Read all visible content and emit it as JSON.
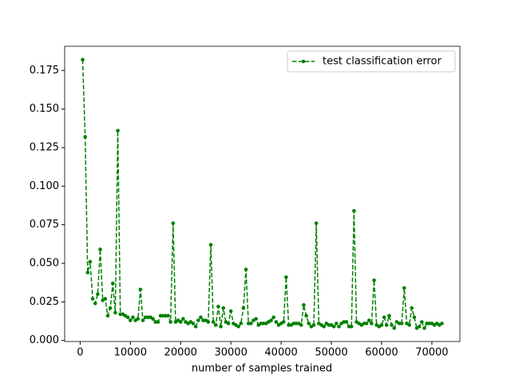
{
  "chart_data": {
    "type": "line",
    "xlabel": "number of samples trained",
    "x": [
      500,
      1000,
      1500,
      2000,
      2500,
      3000,
      3500,
      4000,
      4500,
      5000,
      5500,
      6000,
      6500,
      7000,
      7500,
      8000,
      8500,
      9000,
      9500,
      10000,
      10500,
      11000,
      11500,
      12000,
      12500,
      13000,
      13500,
      14000,
      14500,
      15000,
      15500,
      16000,
      16500,
      17000,
      17500,
      18000,
      18500,
      19000,
      19500,
      20000,
      20500,
      21000,
      21500,
      22000,
      22500,
      23000,
      23500,
      24000,
      24500,
      25000,
      25500,
      26000,
      26500,
      27000,
      27500,
      28000,
      28500,
      29000,
      29500,
      30000,
      30500,
      31000,
      31500,
      32000,
      32500,
      33000,
      33500,
      34000,
      34500,
      35000,
      35500,
      36000,
      36500,
      37000,
      37500,
      38000,
      38500,
      39000,
      39500,
      40000,
      40500,
      41000,
      41500,
      42000,
      42500,
      43000,
      43500,
      44000,
      44500,
      45000,
      45500,
      46000,
      46500,
      47000,
      47500,
      48000,
      48500,
      49000,
      49500,
      50000,
      50500,
      51000,
      51500,
      52000,
      52500,
      53000,
      53500,
      54000,
      54500,
      55000,
      55500,
      56000,
      56500,
      57000,
      57500,
      58000,
      58500,
      59000,
      59500,
      60000,
      60500,
      61000,
      61500,
      62000,
      62500,
      63000,
      63500,
      64000,
      64500,
      65000,
      65500,
      66000,
      66500,
      67000,
      67500,
      68000,
      68500,
      69000,
      69500,
      70000,
      70500,
      71000,
      71500,
      72000
    ],
    "series": [
      {
        "name": "test classification error",
        "color": "#008000",
        "values": [
          0.182,
          0.132,
          0.044,
          0.051,
          0.027,
          0.024,
          0.03,
          0.059,
          0.026,
          0.027,
          0.016,
          0.021,
          0.037,
          0.018,
          0.136,
          0.017,
          0.017,
          0.016,
          0.015,
          0.013,
          0.015,
          0.013,
          0.014,
          0.033,
          0.013,
          0.015,
          0.015,
          0.015,
          0.014,
          0.012,
          0.012,
          0.016,
          0.016,
          0.016,
          0.016,
          0.012,
          0.076,
          0.012,
          0.013,
          0.012,
          0.014,
          0.012,
          0.011,
          0.012,
          0.011,
          0.009,
          0.013,
          0.015,
          0.013,
          0.013,
          0.012,
          0.062,
          0.012,
          0.01,
          0.022,
          0.009,
          0.021,
          0.012,
          0.011,
          0.019,
          0.011,
          0.01,
          0.009,
          0.011,
          0.021,
          0.046,
          0.011,
          0.011,
          0.013,
          0.014,
          0.01,
          0.011,
          0.011,
          0.011,
          0.012,
          0.013,
          0.015,
          0.012,
          0.01,
          0.011,
          0.012,
          0.041,
          0.01,
          0.01,
          0.011,
          0.011,
          0.011,
          0.01,
          0.023,
          0.016,
          0.011,
          0.009,
          0.01,
          0.076,
          0.011,
          0.01,
          0.009,
          0.011,
          0.01,
          0.01,
          0.009,
          0.011,
          0.009,
          0.011,
          0.012,
          0.012,
          0.009,
          0.009,
          0.084,
          0.012,
          0.011,
          0.01,
          0.011,
          0.011,
          0.013,
          0.011,
          0.039,
          0.01,
          0.009,
          0.01,
          0.015,
          0.01,
          0.016,
          0.01,
          0.008,
          0.012,
          0.011,
          0.011,
          0.034,
          0.011,
          0.01,
          0.021,
          0.015,
          0.008,
          0.009,
          0.012,
          0.008,
          0.011,
          0.011,
          0.011,
          0.01,
          0.011,
          0.01,
          0.011
        ]
      }
    ],
    "xlim": [
      -3075,
      75575
    ],
    "xticks": [
      0,
      10000,
      20000,
      30000,
      40000,
      50000,
      60000,
      70000
    ],
    "ylim": [
      -0.0007,
      0.1907
    ],
    "yticks": [
      {
        "value": 0,
        "label": "0.000"
      },
      0.025,
      {
        "value": 0.05,
        "label": "0.050"
      },
      0.075,
      {
        "value": 0.1,
        "label": "0.100"
      },
      0.125,
      {
        "value": 0.15,
        "label": "0.150"
      },
      0.175
    ],
    "legend": "upper right",
    "linestyle": "dashed",
    "marker": "circle"
  }
}
